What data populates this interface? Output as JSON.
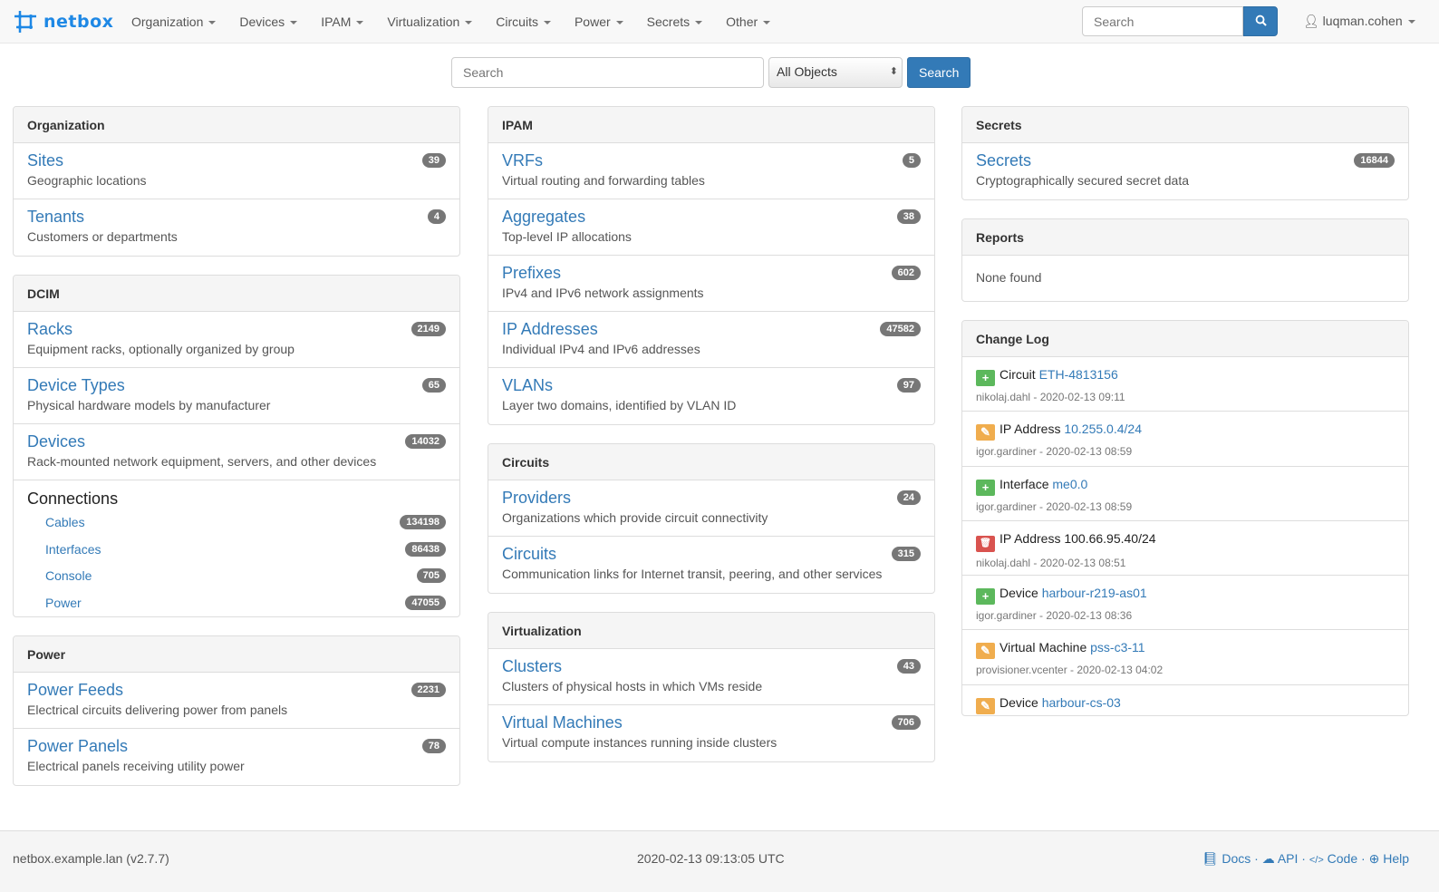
{
  "nav": {
    "brand": "netbox",
    "menus": [
      "Organization",
      "Devices",
      "IPAM",
      "Virtualization",
      "Circuits",
      "Power",
      "Secrets",
      "Other"
    ],
    "search_placeholder": "Search",
    "user": "luqman.cohen"
  },
  "search": {
    "placeholder": "Search",
    "scope": "All Objects",
    "button": "Search"
  },
  "columns": [
    [
      {
        "title": "Organization",
        "items": [
          {
            "name": "Sites",
            "desc": "Geographic locations",
            "count": "39"
          },
          {
            "name": "Tenants",
            "desc": "Customers or departments",
            "count": "4"
          }
        ]
      },
      {
        "title": "DCIM",
        "items": [
          {
            "name": "Racks",
            "desc": "Equipment racks, optionally organized by group",
            "count": "2149"
          },
          {
            "name": "Device Types",
            "desc": "Physical hardware models by manufacturer",
            "count": "65"
          },
          {
            "name": "Devices",
            "desc": "Rack-mounted network equipment, servers, and other devices",
            "count": "14032"
          }
        ],
        "connections": {
          "title": "Connections",
          "items": [
            {
              "name": "Cables",
              "count": "134198"
            },
            {
              "name": "Interfaces",
              "count": "86438"
            },
            {
              "name": "Console",
              "count": "705"
            },
            {
              "name": "Power",
              "count": "47055"
            }
          ]
        }
      },
      {
        "title": "Power",
        "items": [
          {
            "name": "Power Feeds",
            "desc": "Electrical circuits delivering power from panels",
            "count": "2231"
          },
          {
            "name": "Power Panels",
            "desc": "Electrical panels receiving utility power",
            "count": "78"
          }
        ]
      }
    ],
    [
      {
        "title": "IPAM",
        "items": [
          {
            "name": "VRFs",
            "desc": "Virtual routing and forwarding tables",
            "count": "5"
          },
          {
            "name": "Aggregates",
            "desc": "Top-level IP allocations",
            "count": "38"
          },
          {
            "name": "Prefixes",
            "desc": "IPv4 and IPv6 network assignments",
            "count": "602"
          },
          {
            "name": "IP Addresses",
            "desc": "Individual IPv4 and IPv6 addresses",
            "count": "47582"
          },
          {
            "name": "VLANs",
            "desc": "Layer two domains, identified by VLAN ID",
            "count": "97"
          }
        ]
      },
      {
        "title": "Circuits",
        "items": [
          {
            "name": "Providers",
            "desc": "Organizations which provide circuit connectivity",
            "count": "24"
          },
          {
            "name": "Circuits",
            "desc": "Communication links for Internet transit, peering, and other services",
            "count": "315"
          }
        ]
      },
      {
        "title": "Virtualization",
        "items": [
          {
            "name": "Clusters",
            "desc": "Clusters of physical hosts in which VMs reside",
            "count": "43"
          },
          {
            "name": "Virtual Machines",
            "desc": "Virtual compute instances running inside clusters",
            "count": "706"
          }
        ]
      }
    ],
    [
      {
        "title": "Secrets",
        "items": [
          {
            "name": "Secrets",
            "desc": "Cryptographically secured secret data",
            "count": "16844"
          }
        ]
      },
      {
        "title": "Reports",
        "none": "None found"
      },
      {
        "title": "Change Log",
        "changes": [
          {
            "action": "create",
            "type": "Circuit",
            "object": "ETH-4813156",
            "linked": true,
            "meta": "nikolaj.dahl - 2020-02-13 09:11"
          },
          {
            "action": "update",
            "type": "IP Address",
            "object": "10.255.0.4/24",
            "linked": true,
            "meta": "igor.gardiner - 2020-02-13 08:59"
          },
          {
            "action": "create",
            "type": "Interface",
            "object": "me0.0",
            "linked": true,
            "meta": "igor.gardiner - 2020-02-13 08:59"
          },
          {
            "action": "delete",
            "type": "IP Address",
            "object": "100.66.95.40/24",
            "linked": false,
            "meta": "nikolaj.dahl - 2020-02-13 08:51"
          },
          {
            "action": "create",
            "type": "Device",
            "object": "harbour-r219-as01",
            "linked": true,
            "meta": "igor.gardiner - 2020-02-13 08:36"
          },
          {
            "action": "update",
            "type": "Virtual Machine",
            "object": "pss-c3-11",
            "linked": true,
            "meta": "provisioner.vcenter - 2020-02-13 04:02"
          },
          {
            "action": "update",
            "type": "Device",
            "object": "harbour-cs-03",
            "linked": true,
            "meta": ""
          }
        ]
      }
    ]
  ],
  "action_colors": {
    "create": "#5cb85c",
    "update": "#f0ad4e",
    "delete": "#d9534f"
  },
  "footer": {
    "host": "netbox.example.lan (v2.7.7)",
    "time": "2020-02-13 09:13:05 UTC",
    "links": [
      "Docs",
      "API",
      "Code",
      "Help"
    ]
  }
}
